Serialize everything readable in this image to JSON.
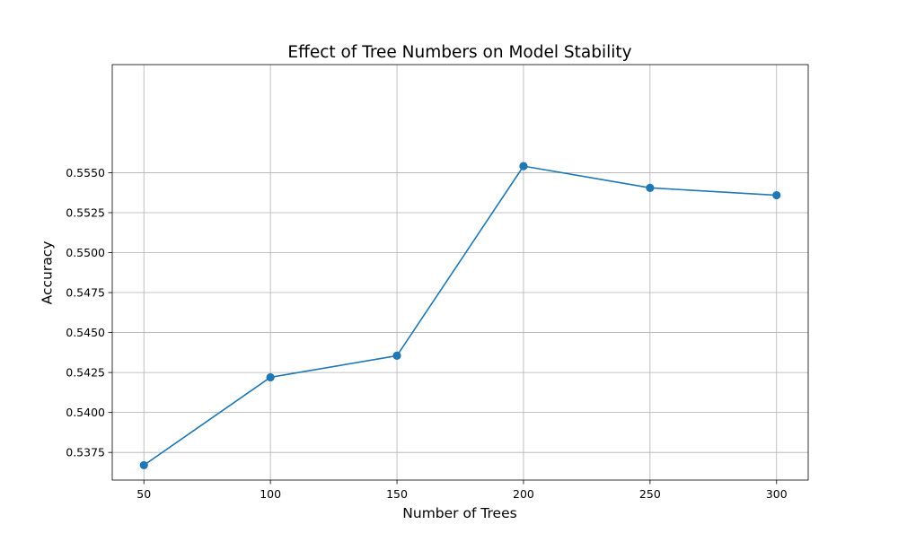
{
  "chart_data": {
    "type": "line",
    "title": "Effect of Tree Numbers on Model Stability",
    "xlabel": "Number of Trees",
    "ylabel": "Accuracy",
    "x": [
      50,
      100,
      150,
      200,
      250,
      300
    ],
    "series": [
      {
        "values": [
          0.5367,
          0.5422,
          0.54355,
          0.55541,
          0.55405,
          0.55359
        ],
        "color": "#1f77b4",
        "marker": "circle"
      }
    ],
    "xticks": [
      "50",
      "100",
      "150",
      "200",
      "250",
      "300"
    ],
    "yticks": [
      "0.5375",
      "0.5400",
      "0.5425",
      "0.5450",
      "0.5475",
      "0.5500",
      "0.5525",
      "0.5550"
    ],
    "xlim": [
      37.5,
      312.5
    ],
    "ylim": [
      0.53577,
      0.56176
    ],
    "grid": true,
    "colors": {
      "grid": "#b0b0b0",
      "axes": "#000000",
      "line": "#1f77b4"
    }
  }
}
